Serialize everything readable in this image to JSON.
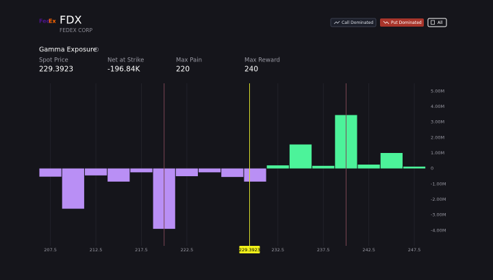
{
  "header": {
    "logo_parts": [
      "Fed",
      "Ex"
    ],
    "ticker": "FDX",
    "company": "FEDEX CORP",
    "buttons": [
      "Call Dominated",
      "Put Dominated",
      "All"
    ]
  },
  "section_title": "Gamma Exposure",
  "stats": [
    {
      "label": "Spot Price",
      "value": "229.3923"
    },
    {
      "label": "Net at Strike",
      "value": "-196.84K"
    },
    {
      "label": "Max Pain",
      "value": "220"
    },
    {
      "label": "Max Reward",
      "value": "240"
    }
  ],
  "chart_data": {
    "type": "bar",
    "x": [
      207.5,
      210,
      212.5,
      215,
      217.5,
      220,
      222.5,
      225,
      227.5,
      230,
      232.5,
      235,
      237.5,
      240,
      242.5,
      245,
      247.5
    ],
    "values": [
      -0.53,
      -2.6,
      -0.45,
      -0.85,
      -0.25,
      -3.9,
      -0.5,
      -0.25,
      -0.55,
      -0.85,
      0.2,
      1.55,
      0.17,
      3.45,
      0.25,
      1.0,
      0.12
    ],
    "positive_color": "#4cf39a",
    "negative_color": "#b98ff5",
    "xlim": [
      206.25,
      249
    ],
    "ylim": [
      -5,
      5.5
    ],
    "xticks": [
      207.5,
      212.5,
      217.5,
      222.5,
      232.5,
      237.5,
      242.5,
      247.5
    ],
    "yticks": [
      {
        "value": 5,
        "label": "5.00M"
      },
      {
        "value": 4,
        "label": "4.00M"
      },
      {
        "value": 3,
        "label": "3.00M"
      },
      {
        "value": 2,
        "label": "2.00M"
      },
      {
        "value": 1,
        "label": "1.00M"
      },
      0,
      {
        "value": -1,
        "label": "-1.00M"
      },
      {
        "value": -2,
        "label": "-2.00M"
      },
      {
        "value": -3,
        "label": "-3.00M"
      },
      {
        "value": -4,
        "label": "-4.00M"
      }
    ],
    "grid": true,
    "reference_lines": [
      {
        "value": 220,
        "color": "#7a4654"
      },
      {
        "value": 229.3923,
        "color": "#d8dc2c",
        "labeled": true
      },
      {
        "value": 240,
        "color": "#7a4654"
      }
    ]
  }
}
